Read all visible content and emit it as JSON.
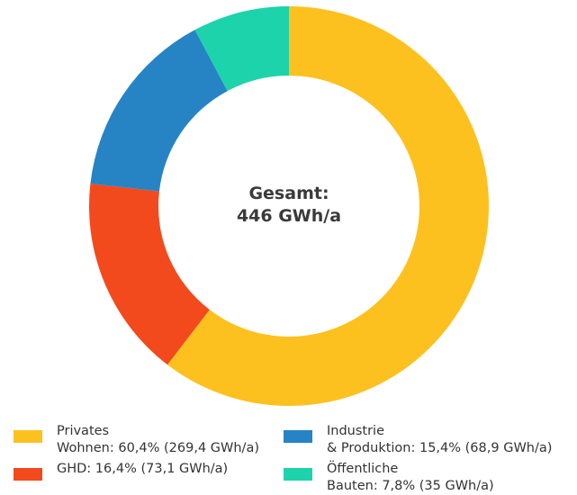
{
  "chart_data": {
    "type": "donut",
    "center_label": "Gesamt:\n446 GWh/a",
    "categories": [
      "Privates\nWohnen: 60,4% (269,4 GWh/a)",
      "GHD: 16,4% (73,1 GWh/a)",
      "Industrie\n& Produktion: 15,4% (68,9 GWh/a)",
      "Öffentliche\nBauten: 7,8% (35 GWh/a)"
    ],
    "values": [
      60.4,
      16.4,
      15.4,
      7.8
    ],
    "colors": [
      "#fdc11f",
      "#f24a1d",
      "#2684c4",
      "#1dd3ab"
    ]
  }
}
